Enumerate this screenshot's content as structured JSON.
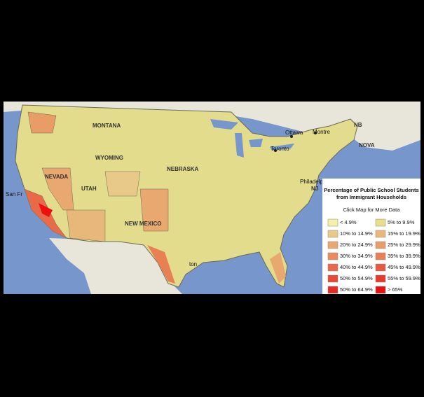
{
  "legend": {
    "title_line1": "Percentage of Public School Students",
    "title_line2": "from Immigrant Households",
    "subtitle": "Click Map for More Data",
    "items": [
      {
        "label": "< 4.9%",
        "color": "#f4f1a6"
      },
      {
        "label": "5% to 9.9%",
        "color": "#e6e08a"
      },
      {
        "label": "10% to 14.9%",
        "color": "#e9c98a"
      },
      {
        "label": "15% to 19.9%",
        "color": "#e8b87a"
      },
      {
        "label": "20% to 24.9%",
        "color": "#e8a870"
      },
      {
        "label": "25% to 29.9%",
        "color": "#e89c66"
      },
      {
        "label": "30% to 34.9%",
        "color": "#e88c5c"
      },
      {
        "label": "35% to 39.9%",
        "color": "#e88054"
      },
      {
        "label": "40% to 44.9%",
        "color": "#e86a48"
      },
      {
        "label": "45% to 49.9%",
        "color": "#e85a40"
      },
      {
        "label": "50% to 54.9%",
        "color": "#e84a36"
      },
      {
        "label": "55% to 59.9%",
        "color": "#e83a2c"
      },
      {
        "label": "50% to 64.9%",
        "color": "#e82a24"
      },
      {
        "label": "> 65%",
        "color": "#ec1010"
      }
    ]
  },
  "map_labels": [
    "Ottawa",
    "Montre",
    "NB",
    "NOVA",
    "Toronto",
    "Philadelphia",
    "NJ",
    "San Fr",
    "NEVADA",
    "UTAH",
    "WYOMING",
    "MONTANA",
    "NEBRASKA",
    "NEW MEXICO",
    "ton"
  ]
}
